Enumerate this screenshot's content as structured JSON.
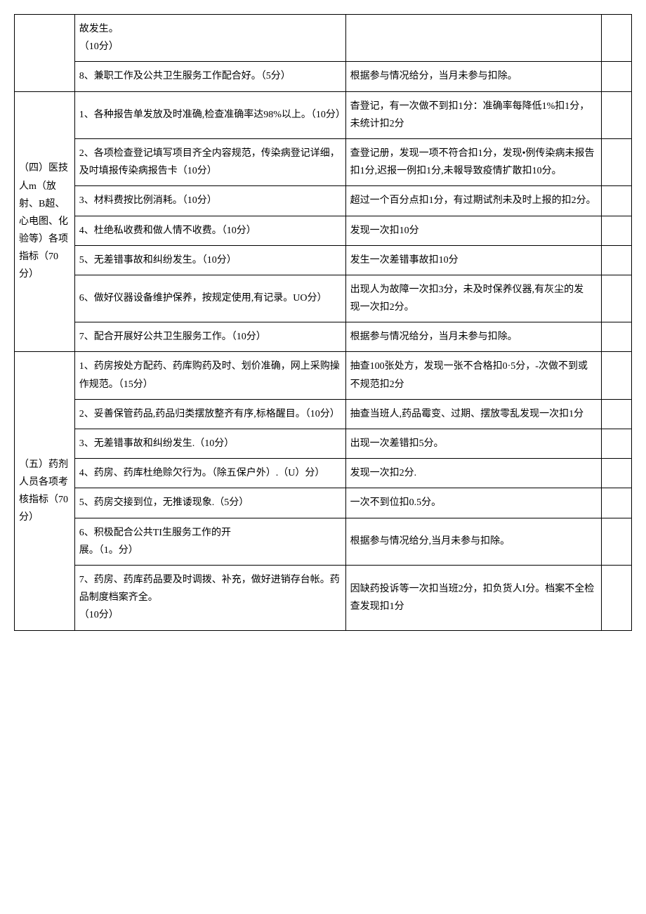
{
  "section3": {
    "category": "",
    "rows": [
      {
        "item": "故发生。\n（10分）",
        "crit": ""
      },
      {
        "item": "8、兼职工作及公共卫生服务工作配合好。（5分）",
        "crit": "根据参与情况给分，当月未参与扣除。"
      }
    ]
  },
  "section4": {
    "category": "（四）医技人m（放射、B超、心电图、化验等）各项指标（70分）",
    "rows": [
      {
        "item": "1、各种报告单发放及时准确,检查准确率达98%以上。（10分）",
        "crit": "杳登记，有一次做不到扣1分：准确率每降低1%扣1分，未统计扣2分"
      },
      {
        "item": "2、各项检查登记填写项目齐全内容规范，传染病登记详细，及吋填报传染病报告卡（10分）",
        "crit": "查登记册，发现一项不符合扣1分，发现•例传染病未报告扣1分,迟报一例扣1分,未報导致疫情扩散扣10分。"
      },
      {
        "item": "3、材料费按比例消耗。（10分）",
        "crit": "超过一个百分点扣1分，有过期试剂未及时上报的扣2分。"
      },
      {
        "item": "4、杜绝私收费和做人情不收费。（10分）",
        "crit": "发现一次扣10分"
      },
      {
        "item": "5、无差错事故和纠纷发生。（10分）",
        "crit": "发生一次差错事故扣10分"
      },
      {
        "item": "6、做好仪器设备维护保养，按规定使用,有记录。UO分）",
        "crit": "出现人为故障一次扣3分，未及时保养仪器,有灰尘的发\n现一次扣2分。"
      },
      {
        "item": "7、配合开展好公共卫生服务工作。（10分）",
        "crit": "根据参与情况给分，当月未参与扣除。"
      }
    ]
  },
  "section5": {
    "category": "（五）药剂人员各项考核指标（70分）",
    "rows": [
      {
        "item": "1、药房按处方配药、药库购药及时、划价准确，网上采购操作规范。（15分）",
        "crit": "抽查100张处方，发现一张不合格扣0·5分，-次做不到或不规范扣2分"
      },
      {
        "item": "2、妥善保管药品,药品归类摆放整齐有序,标格醒目。（10分）",
        "crit": "抽查当班人,药品霉变、过期、摆放零乱发现一次扣1分"
      },
      {
        "item": "3、无差错事故和纠纷发生.（10分）",
        "crit": "出现一次差错扣5分。"
      },
      {
        "item": "4、药房、药库杜绝赊欠行为。（除五保户外）.（U）分）",
        "crit": "发现一次扣2分."
      },
      {
        "item": "5、药房交接到位，无推诿现象.（5分）",
        "crit": "一次不到位扣0.5分。"
      },
      {
        "item": "6、积极配合公共TI生服务工作的开\n展。（1。分）",
        "crit": "根据参与情况给分,当月未参与扣除。"
      },
      {
        "item": "7、药房、药库药品要及时调拨、补充，做好进销存台帐。药品制度档案齐全。\n（10分）",
        "crit": "因缺药投诉等一次扣当班2分，扣负货人I分。档案不全检查发现扣1分"
      }
    ]
  }
}
